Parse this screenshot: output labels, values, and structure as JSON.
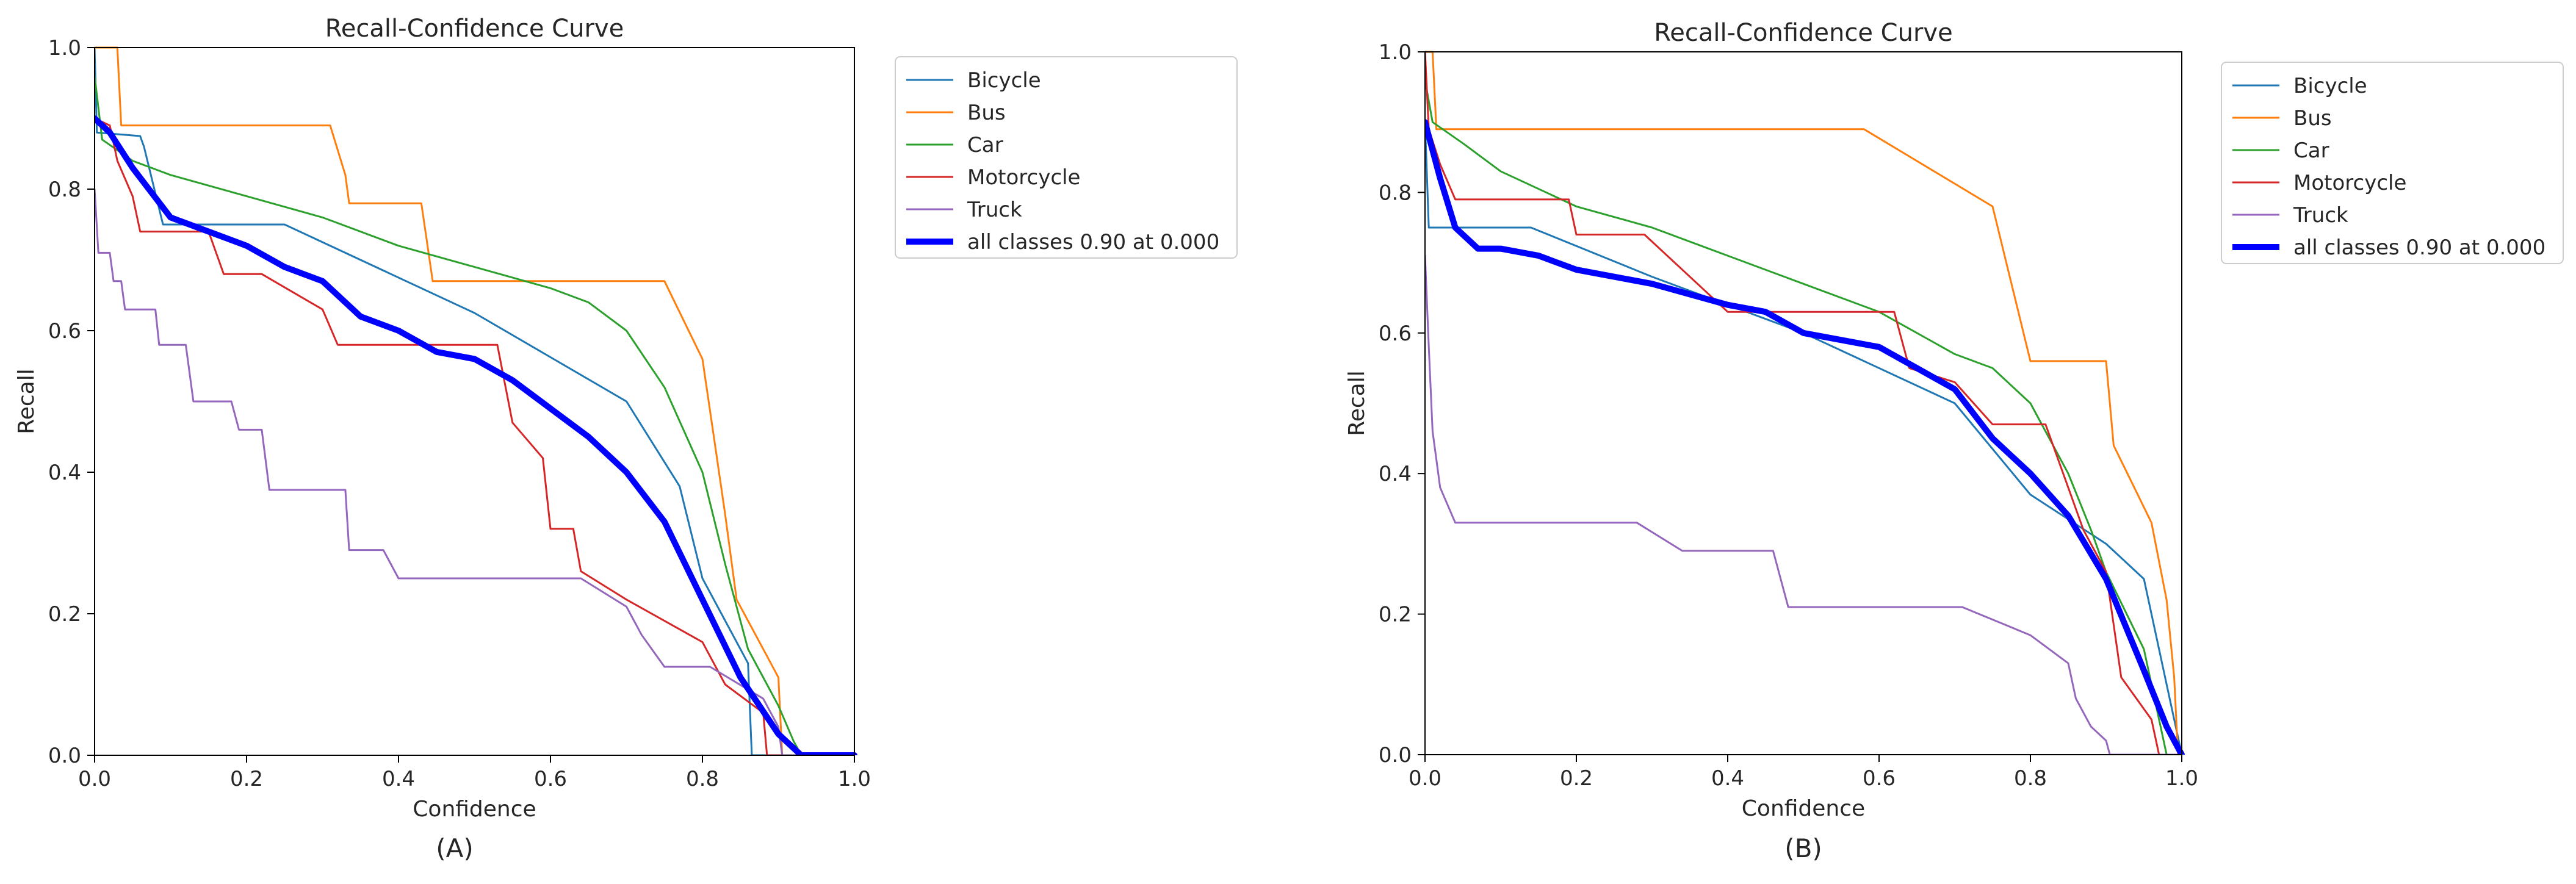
{
  "chart_data": [
    {
      "type": "line",
      "panel_label": "(A)",
      "title": "Recall-Confidence Curve",
      "xlabel": "Confidence",
      "ylabel": "Recall",
      "xlim": [
        0,
        1
      ],
      "ylim": [
        0,
        1
      ],
      "xticks": [
        "0.0",
        "0.2",
        "0.4",
        "0.6",
        "0.8",
        "1.0"
      ],
      "yticks": [
        "0.0",
        "0.2",
        "0.4",
        "0.6",
        "0.8",
        "1.0"
      ],
      "grid": false,
      "legend_position": "outside-right-top",
      "series": [
        {
          "name": "Bicycle",
          "color": "#1f77b4",
          "width": "thin",
          "points": [
            [
              0,
              1.0
            ],
            [
              0.003,
              0.88
            ],
            [
              0.06,
              0.875
            ],
            [
              0.065,
              0.86
            ],
            [
              0.09,
              0.75
            ],
            [
              0.25,
              0.75
            ],
            [
              0.5,
              0.625
            ],
            [
              0.7,
              0.5
            ],
            [
              0.77,
              0.38
            ],
            [
              0.8,
              0.25
            ],
            [
              0.86,
              0.13
            ],
            [
              0.865,
              0.0
            ],
            [
              1.0,
              0.0
            ]
          ]
        },
        {
          "name": "Bus",
          "color": "#ff7f0e",
          "width": "thin",
          "points": [
            [
              0,
              1.0
            ],
            [
              0.03,
              1.0
            ],
            [
              0.035,
              0.89
            ],
            [
              0.31,
              0.89
            ],
            [
              0.33,
              0.82
            ],
            [
              0.335,
              0.78
            ],
            [
              0.43,
              0.78
            ],
            [
              0.445,
              0.67
            ],
            [
              0.75,
              0.67
            ],
            [
              0.8,
              0.56
            ],
            [
              0.815,
              0.45
            ],
            [
              0.83,
              0.34
            ],
            [
              0.845,
              0.22
            ],
            [
              0.87,
              0.17
            ],
            [
              0.9,
              0.11
            ],
            [
              0.905,
              0.0
            ],
            [
              1.0,
              0.0
            ]
          ]
        },
        {
          "name": "Car",
          "color": "#2ca02c",
          "width": "thin",
          "points": [
            [
              0,
              0.96
            ],
            [
              0.01,
              0.87
            ],
            [
              0.05,
              0.84
            ],
            [
              0.1,
              0.82
            ],
            [
              0.2,
              0.79
            ],
            [
              0.3,
              0.76
            ],
            [
              0.4,
              0.72
            ],
            [
              0.5,
              0.69
            ],
            [
              0.6,
              0.66
            ],
            [
              0.65,
              0.64
            ],
            [
              0.7,
              0.6
            ],
            [
              0.75,
              0.52
            ],
            [
              0.8,
              0.4
            ],
            [
              0.83,
              0.27
            ],
            [
              0.86,
              0.15
            ],
            [
              0.9,
              0.07
            ],
            [
              0.92,
              0.02
            ],
            [
              0.93,
              0.0
            ],
            [
              1.0,
              0.0
            ]
          ]
        },
        {
          "name": "Motorcycle",
          "color": "#d62728",
          "width": "thin",
          "points": [
            [
              0,
              0.9
            ],
            [
              0.02,
              0.89
            ],
            [
              0.03,
              0.84
            ],
            [
              0.05,
              0.79
            ],
            [
              0.06,
              0.74
            ],
            [
              0.15,
              0.74
            ],
            [
              0.17,
              0.68
            ],
            [
              0.22,
              0.68
            ],
            [
              0.3,
              0.63
            ],
            [
              0.32,
              0.58
            ],
            [
              0.53,
              0.58
            ],
            [
              0.55,
              0.47
            ],
            [
              0.59,
              0.42
            ],
            [
              0.6,
              0.32
            ],
            [
              0.63,
              0.32
            ],
            [
              0.64,
              0.26
            ],
            [
              0.7,
              0.22
            ],
            [
              0.8,
              0.16
            ],
            [
              0.83,
              0.1
            ],
            [
              0.88,
              0.06
            ],
            [
              0.885,
              0.0
            ],
            [
              1.0,
              0.0
            ]
          ]
        },
        {
          "name": "Truck",
          "color": "#9467bd",
          "width": "thin",
          "points": [
            [
              0,
              0.8
            ],
            [
              0.005,
              0.71
            ],
            [
              0.02,
              0.71
            ],
            [
              0.025,
              0.67
            ],
            [
              0.035,
              0.67
            ],
            [
              0.04,
              0.63
            ],
            [
              0.08,
              0.63
            ],
            [
              0.085,
              0.58
            ],
            [
              0.12,
              0.58
            ],
            [
              0.13,
              0.5
            ],
            [
              0.18,
              0.5
            ],
            [
              0.19,
              0.46
            ],
            [
              0.22,
              0.46
            ],
            [
              0.23,
              0.375
            ],
            [
              0.33,
              0.375
            ],
            [
              0.335,
              0.29
            ],
            [
              0.38,
              0.29
            ],
            [
              0.4,
              0.25
            ],
            [
              0.64,
              0.25
            ],
            [
              0.7,
              0.21
            ],
            [
              0.72,
              0.17
            ],
            [
              0.75,
              0.125
            ],
            [
              0.81,
              0.125
            ],
            [
              0.88,
              0.08
            ],
            [
              0.9,
              0.04
            ],
            [
              0.905,
              0.0
            ],
            [
              1.0,
              0.0
            ]
          ]
        },
        {
          "name": "all classes 0.90 at 0.000",
          "color": "#0000ff",
          "width": "thick",
          "points": [
            [
              0,
              0.9
            ],
            [
              0.02,
              0.88
            ],
            [
              0.05,
              0.83
            ],
            [
              0.1,
              0.76
            ],
            [
              0.15,
              0.74
            ],
            [
              0.2,
              0.72
            ],
            [
              0.25,
              0.69
            ],
            [
              0.3,
              0.67
            ],
            [
              0.35,
              0.62
            ],
            [
              0.4,
              0.6
            ],
            [
              0.45,
              0.57
            ],
            [
              0.5,
              0.56
            ],
            [
              0.55,
              0.53
            ],
            [
              0.6,
              0.49
            ],
            [
              0.65,
              0.45
            ],
            [
              0.7,
              0.4
            ],
            [
              0.75,
              0.33
            ],
            [
              0.8,
              0.22
            ],
            [
              0.85,
              0.11
            ],
            [
              0.9,
              0.03
            ],
            [
              0.93,
              0.0
            ],
            [
              1.0,
              0.0
            ]
          ]
        }
      ]
    },
    {
      "type": "line",
      "panel_label": "(B)",
      "title": "Recall-Confidence Curve",
      "xlabel": "Confidence",
      "ylabel": "Recall",
      "xlim": [
        0,
        1
      ],
      "ylim": [
        0,
        1
      ],
      "xticks": [
        "0.0",
        "0.2",
        "0.4",
        "0.6",
        "0.8",
        "1.0"
      ],
      "yticks": [
        "0.0",
        "0.2",
        "0.4",
        "0.6",
        "0.8",
        "1.0"
      ],
      "grid": false,
      "legend_position": "outside-right-top",
      "series": [
        {
          "name": "Bicycle",
          "color": "#1f77b4",
          "width": "thin",
          "points": [
            [
              0,
              0.9
            ],
            [
              0.005,
              0.75
            ],
            [
              0.14,
              0.75
            ],
            [
              0.3,
              0.68
            ],
            [
              0.5,
              0.6
            ],
            [
              0.7,
              0.5
            ],
            [
              0.8,
              0.37
            ],
            [
              0.9,
              0.3
            ],
            [
              0.95,
              0.25
            ],
            [
              0.98,
              0.1
            ],
            [
              1.0,
              0.0
            ]
          ]
        },
        {
          "name": "Bus",
          "color": "#ff7f0e",
          "width": "thin",
          "points": [
            [
              0,
              1.0
            ],
            [
              0.01,
              1.0
            ],
            [
              0.015,
              0.89
            ],
            [
              0.58,
              0.89
            ],
            [
              0.75,
              0.78
            ],
            [
              0.8,
              0.56
            ],
            [
              0.9,
              0.56
            ],
            [
              0.91,
              0.44
            ],
            [
              0.96,
              0.33
            ],
            [
              0.98,
              0.22
            ],
            [
              0.99,
              0.11
            ],
            [
              0.995,
              0.0
            ],
            [
              1.0,
              0.0
            ]
          ]
        },
        {
          "name": "Car",
          "color": "#2ca02c",
          "width": "thin",
          "points": [
            [
              0,
              0.96
            ],
            [
              0.01,
              0.9
            ],
            [
              0.05,
              0.87
            ],
            [
              0.1,
              0.83
            ],
            [
              0.2,
              0.78
            ],
            [
              0.3,
              0.75
            ],
            [
              0.4,
              0.71
            ],
            [
              0.5,
              0.67
            ],
            [
              0.6,
              0.63
            ],
            [
              0.7,
              0.57
            ],
            [
              0.75,
              0.55
            ],
            [
              0.8,
              0.5
            ],
            [
              0.85,
              0.4
            ],
            [
              0.88,
              0.32
            ],
            [
              0.9,
              0.26
            ],
            [
              0.95,
              0.15
            ],
            [
              0.97,
              0.05
            ],
            [
              0.98,
              0.0
            ],
            [
              1.0,
              0.0
            ]
          ]
        },
        {
          "name": "Motorcycle",
          "color": "#d62728",
          "width": "thin",
          "points": [
            [
              0,
              1.0
            ],
            [
              0.005,
              0.89
            ],
            [
              0.02,
              0.84
            ],
            [
              0.04,
              0.79
            ],
            [
              0.19,
              0.79
            ],
            [
              0.2,
              0.74
            ],
            [
              0.29,
              0.74
            ],
            [
              0.4,
              0.63
            ],
            [
              0.62,
              0.63
            ],
            [
              0.64,
              0.55
            ],
            [
              0.7,
              0.53
            ],
            [
              0.75,
              0.47
            ],
            [
              0.82,
              0.47
            ],
            [
              0.87,
              0.32
            ],
            [
              0.9,
              0.26
            ],
            [
              0.92,
              0.11
            ],
            [
              0.96,
              0.05
            ],
            [
              0.97,
              0.0
            ],
            [
              1.0,
              0.0
            ]
          ]
        },
        {
          "name": "Truck",
          "color": "#9467bd",
          "width": "thin",
          "points": [
            [
              0,
              0.71
            ],
            [
              0.005,
              0.58
            ],
            [
              0.01,
              0.46
            ],
            [
              0.02,
              0.38
            ],
            [
              0.04,
              0.33
            ],
            [
              0.28,
              0.33
            ],
            [
              0.34,
              0.29
            ],
            [
              0.46,
              0.29
            ],
            [
              0.48,
              0.21
            ],
            [
              0.71,
              0.21
            ],
            [
              0.8,
              0.17
            ],
            [
              0.85,
              0.13
            ],
            [
              0.86,
              0.08
            ],
            [
              0.88,
              0.04
            ],
            [
              0.9,
              0.02
            ],
            [
              0.905,
              0.0
            ],
            [
              1.0,
              0.0
            ]
          ]
        },
        {
          "name": "all classes 0.90 at 0.000",
          "color": "#0000ff",
          "width": "thick",
          "points": [
            [
              0,
              0.9
            ],
            [
              0.02,
              0.82
            ],
            [
              0.04,
              0.75
            ],
            [
              0.07,
              0.72
            ],
            [
              0.1,
              0.72
            ],
            [
              0.15,
              0.71
            ],
            [
              0.2,
              0.69
            ],
            [
              0.3,
              0.67
            ],
            [
              0.4,
              0.64
            ],
            [
              0.45,
              0.63
            ],
            [
              0.5,
              0.6
            ],
            [
              0.6,
              0.58
            ],
            [
              0.65,
              0.55
            ],
            [
              0.7,
              0.52
            ],
            [
              0.75,
              0.45
            ],
            [
              0.8,
              0.4
            ],
            [
              0.85,
              0.34
            ],
            [
              0.9,
              0.25
            ],
            [
              0.95,
              0.12
            ],
            [
              0.98,
              0.04
            ],
            [
              1.0,
              0.0
            ]
          ]
        }
      ]
    }
  ]
}
